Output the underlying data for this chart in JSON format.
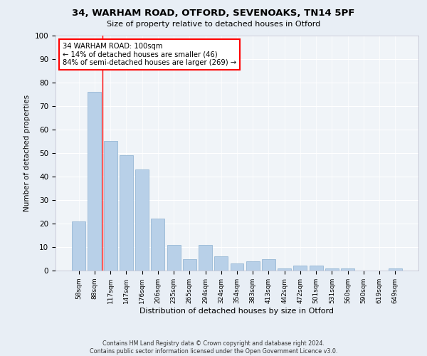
{
  "title1": "34, WARHAM ROAD, OTFORD, SEVENOAKS, TN14 5PF",
  "title2": "Size of property relative to detached houses in Otford",
  "xlabel": "Distribution of detached houses by size in Otford",
  "ylabel": "Number of detached properties",
  "categories": [
    "58sqm",
    "88sqm",
    "117sqm",
    "147sqm",
    "176sqm",
    "206sqm",
    "235sqm",
    "265sqm",
    "294sqm",
    "324sqm",
    "354sqm",
    "383sqm",
    "413sqm",
    "442sqm",
    "472sqm",
    "501sqm",
    "531sqm",
    "560sqm",
    "590sqm",
    "619sqm",
    "649sqm"
  ],
  "values": [
    21,
    76,
    55,
    49,
    43,
    22,
    11,
    5,
    11,
    6,
    3,
    4,
    5,
    1,
    2,
    2,
    1,
    1,
    0,
    0,
    1
  ],
  "bar_color": "#b8d0e8",
  "bar_edge_color": "#8ab0d0",
  "vline_x": 1.5,
  "vline_color": "red",
  "annotation_text": "34 WARHAM ROAD: 100sqm\n← 14% of detached houses are smaller (46)\n84% of semi-detached houses are larger (269) →",
  "annotation_box_color": "white",
  "annotation_box_edge_color": "red",
  "ylim": [
    0,
    100
  ],
  "yticks": [
    0,
    10,
    20,
    30,
    40,
    50,
    60,
    70,
    80,
    90,
    100
  ],
  "footnote": "Contains HM Land Registry data © Crown copyright and database right 2024.\nContains public sector information licensed under the Open Government Licence v3.0.",
  "bg_color": "#e8eef5",
  "plot_bg_color": "#f0f4f8"
}
